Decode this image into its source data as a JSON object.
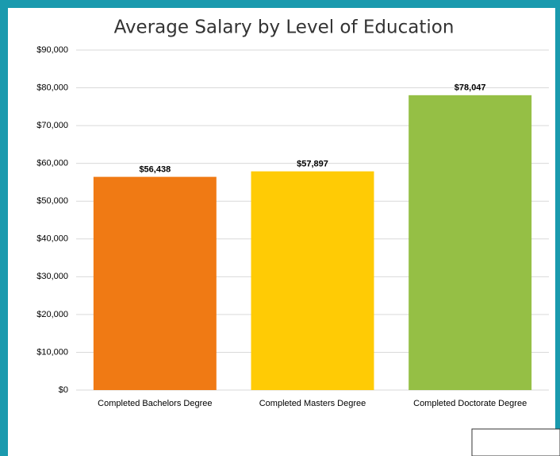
{
  "chart_data": {
    "type": "bar",
    "title": "Average Salary by Level of Education",
    "categories": [
      "Completed Bachelors Degree",
      "Completed Masters Degree",
      "Completed Doctorate Degree"
    ],
    "values": [
      56438,
      57897,
      78047
    ],
    "value_labels": [
      "$56,438",
      "$57,897",
      "$78,047"
    ],
    "colors": [
      "#f07a14",
      "#ffcb05",
      "#95bf45"
    ],
    "ylim": [
      0,
      90000
    ],
    "yticks": [
      {
        "value": 0,
        "label": "$0"
      },
      {
        "value": 10000,
        "label": "$10,000"
      },
      {
        "value": 20000,
        "label": "$20,000"
      },
      {
        "value": 30000,
        "label": "$30,000"
      },
      {
        "value": 40000,
        "label": "$40,000"
      },
      {
        "value": 50000,
        "label": "$50,000"
      },
      {
        "value": 60000,
        "label": "$60,000"
      },
      {
        "value": 70000,
        "label": "$70,000"
      },
      {
        "value": 80000,
        "label": "$80,000"
      },
      {
        "value": 90000,
        "label": "$90,000"
      }
    ],
    "grid": true
  }
}
